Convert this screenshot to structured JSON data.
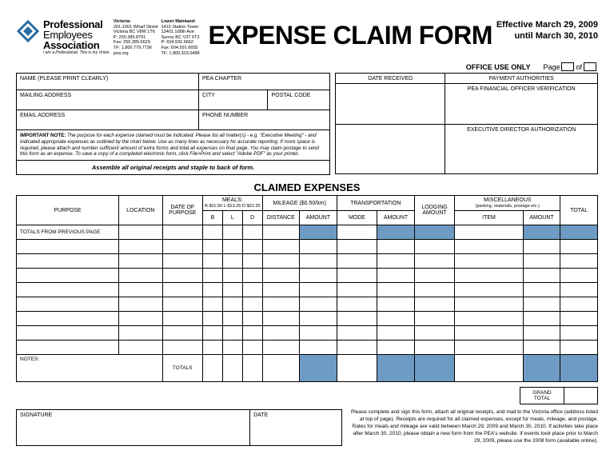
{
  "header": {
    "org_l1": "Professional",
    "org_l2": "Employees",
    "org_l3": "Association",
    "tagline": "I am a Professional. This is my Union.",
    "victoria": {
      "hd": "Victoria:",
      "addr1": "201-1001 Wharf Street",
      "addr2": "Victoria BC V8W 1T6",
      "ph": "P: 250.385.8791",
      "fax": "Fax: 250.385.6629",
      "tf": "TF: 1.800.779.7736",
      "web": "pea.org"
    },
    "mainland": {
      "hd": "Lower Mainland:",
      "addr1": "1410 Station Tower",
      "addr2": "13401 108th Ave",
      "addr3": "Surrey BC V3T 5T3",
      "ph": "P: 604.591.6662",
      "fax": "Fax: 604.591.6655",
      "tf": "TF: 1.800.323.0488"
    },
    "title": "EXPENSE CLAIM FORM",
    "eff1": "Effective March 29, 2009",
    "eff2": "until March 30, 2010"
  },
  "pagebar": {
    "office": "OFFICE USE ONLY",
    "page": "Page",
    "of": "of"
  },
  "left": {
    "name": "NAME (PLEASE PRINT CLEARLY)",
    "pea_chapter": "PEA CHAPTER",
    "mailing": "MAILING ADDRESS",
    "city": "CITY",
    "postal": "POSTAL CODE",
    "email": "EMAIL ADDRESS",
    "phone": "PHONE NUMBER"
  },
  "note": {
    "hd": "IMPORTANT NOTE:",
    "body": " The purpose for each expense claimed must be indicated. Please list all matter(s) - e.g. \"Executive Meeting\" - and indicated appropriate expenses as outlined by the chart below. Use as many lines as necessary for accurate reporting. If more space is required, please attach and number sufficient amount of extra forms and total all expenses on final page. You may claim postage to send this form as an expense. To save a copy of a completed electronic form, click File>Print and select \"Adobe PDF\" as your printer."
  },
  "assemble": "Assemble all original receipts and staple to back of form.",
  "right": {
    "date_received": "DATE RECEIVED",
    "payment_auth": "PAYMENT AUTHORITIES",
    "pea_fin": "PEA FINANCIAL OFFICER VERIFICATION",
    "exec_dir": "EXECUTIVE DIRECTOR AUTHORIZATION"
  },
  "claimed_title": "CLAIMED EXPENSES",
  "table": {
    "purpose": "PURPOSE",
    "location": "LOCATION",
    "date_of_purpose": "DATE OF\nPURPOSE",
    "meals": "MEALS:",
    "meals_sub": "B-$11.50 L-$13.25 D-$22.25",
    "b": "B",
    "l": "L",
    "d": "D",
    "mileage": "MILEAGE ($0.50/km)",
    "distance": "DISTANCE",
    "amount": "AMOUNT",
    "transport": "TRANSPORTATION",
    "mode": "MODE",
    "lodging": "LODGING\nAMOUNT",
    "misc": "MISCELLANEOUS",
    "misc_sub": "(parking, materials, postage etc.)",
    "item": "ITEM",
    "total": "TOTAL",
    "totals_prev": "TOTALS FROM PREVIOUS PAGE",
    "notes": "NOTES:",
    "totals_label": "TOTALS",
    "grand_total": "GRAND\nTOTAL"
  },
  "bottom": {
    "signature": "SIGNATURE",
    "date": "DATE",
    "disclaimer": "Please complete and sign this form, attach all original receipts, and mail to the Victoria office (address listed at top of page). Receipts are required for all claimed expenses, except for meals, mileage, and postage. Rates for meals and mileage are valid between  March 29, 2009 and March 30, 2010. If activities take place after March 30, 2010, please obtain a new form from the PEA's website. If events took place prior to March 29, 2009, please use the 2008 form (available online)."
  },
  "blue": "#6d9bc3"
}
